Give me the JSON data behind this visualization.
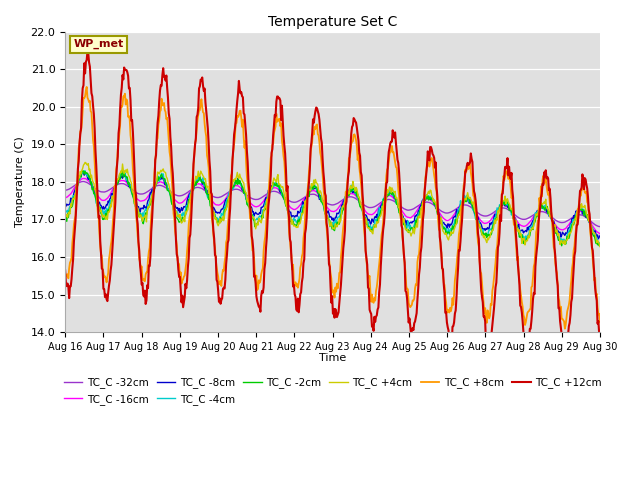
{
  "title": "Temperature Set C",
  "xlabel": "Time",
  "ylabel": "Temperature (C)",
  "ylim": [
    14.0,
    22.0
  ],
  "yticks": [
    14.0,
    15.0,
    16.0,
    17.0,
    18.0,
    19.0,
    20.0,
    21.0,
    22.0
  ],
  "xtick_labels": [
    "Aug 16",
    "Aug 17",
    "Aug 18",
    "Aug 19",
    "Aug 20",
    "Aug 21",
    "Aug 22",
    "Aug 23",
    "Aug 24",
    "Aug 25",
    "Aug 26",
    "Aug 27",
    "Aug 28",
    "Aug 29",
    "Aug 30"
  ],
  "series_colors": {
    "TC_C -32cm": "#9933cc",
    "TC_C -16cm": "#ff00ff",
    "TC_C -8cm": "#0000cc",
    "TC_C -4cm": "#00cccc",
    "TC_C -2cm": "#00cc00",
    "TC_C +4cm": "#cccc00",
    "TC_C +8cm": "#ff9900",
    "TC_C +12cm": "#cc0000"
  },
  "legend_label": "WP_met",
  "background_color": "#e0e0e0",
  "figure_background": "#ffffff"
}
